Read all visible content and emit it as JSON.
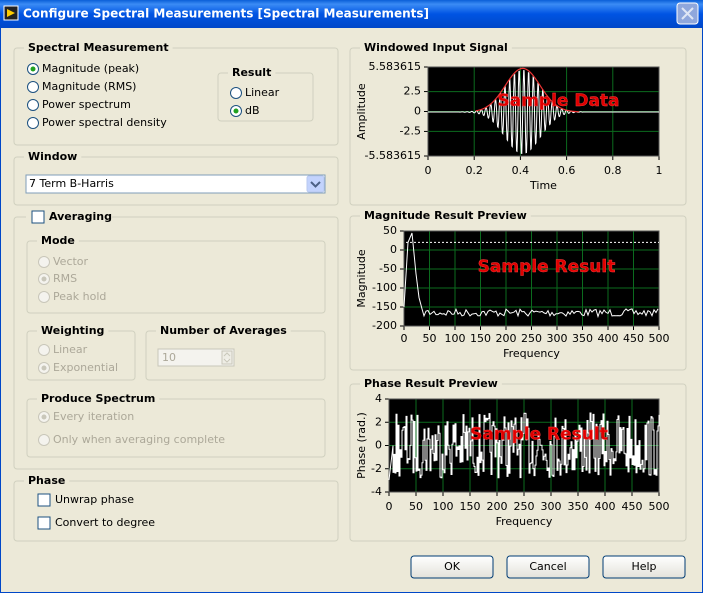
{
  "window_title": "Configure Spectral Measurements [Spectral Measurements]",
  "spectral_measurement": {
    "title": "Spectral Measurement",
    "options": [
      "Magnitude (peak)",
      "Magnitude (RMS)",
      "Power spectrum",
      "Power spectral density"
    ]
  },
  "result": {
    "title": "Result",
    "options": [
      "Linear",
      "dB"
    ]
  },
  "window": {
    "title": "Window",
    "value": "7 Term B-Harris"
  },
  "averaging": {
    "title": "Averaging",
    "mode": {
      "title": "Mode",
      "options": [
        "Vector",
        "RMS",
        "Peak hold"
      ]
    },
    "weighting": {
      "title": "Weighting",
      "options": [
        "Linear",
        "Exponential"
      ]
    },
    "number_of_averages": {
      "title": "Number of Averages",
      "value": 10
    },
    "produce_spectrum": {
      "title": "Produce Spectrum",
      "options": [
        "Every iteration",
        "Only when averaging complete"
      ]
    }
  },
  "phase": {
    "title": "Phase",
    "options": [
      "Unwrap phase",
      "Convert to degree"
    ]
  },
  "plots": [
    {
      "title": "Windowed Input Signal",
      "ylabel": "Amplitude",
      "xlabel": "Time",
      "annotation": "Sample Data",
      "xlim": [
        0,
        1
      ],
      "xticks": [
        0,
        0.2,
        0.4,
        0.6,
        0.8,
        1
      ],
      "ylim": [
        -5.583615,
        5.583615
      ],
      "yticks": [
        -5.583615,
        -2.5,
        0,
        2.5,
        5.583615
      ]
    },
    {
      "title": "Magnitude Result Preview",
      "ylabel": "Magnitude",
      "xlabel": "Frequency",
      "annotation": "Sample Result",
      "xlim": [
        0,
        500
      ],
      "xticks": [
        0,
        50,
        100,
        150,
        200,
        250,
        300,
        350,
        400,
        450,
        500
      ],
      "ylim": [
        -200,
        50
      ],
      "yticks": [
        -200,
        -150,
        -100,
        -50,
        0,
        50
      ]
    },
    {
      "title": "Phase Result Preview",
      "ylabel": "Phase (rad.)",
      "xlabel": "Frequency",
      "annotation": "Sample Result",
      "xlim": [
        0,
        500
      ],
      "xticks": [
        0,
        50,
        100,
        150,
        200,
        250,
        300,
        350,
        400,
        450,
        500
      ],
      "ylim": [
        -4,
        4
      ],
      "yticks": [
        -4,
        -2,
        0,
        2,
        4
      ]
    }
  ],
  "buttons": [
    "OK",
    "Cancel",
    "Help"
  ]
}
